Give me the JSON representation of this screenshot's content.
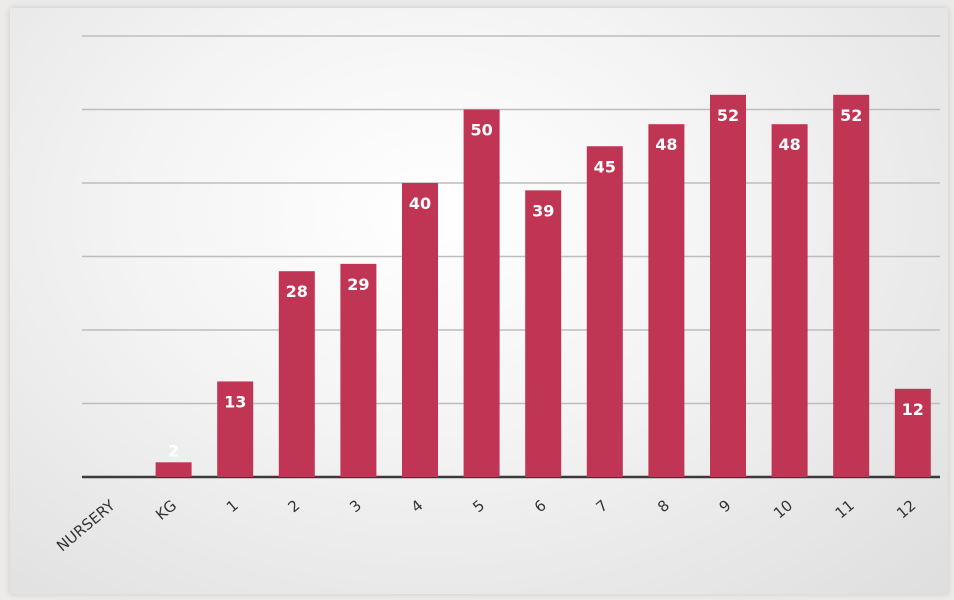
{
  "chart_data": {
    "type": "bar",
    "categories": [
      "NURSERY",
      "KG",
      "1",
      "2",
      "3",
      "4",
      "5",
      "6",
      "7",
      "8",
      "9",
      "10",
      "11",
      "12"
    ],
    "values": [
      0,
      2,
      13,
      28,
      29,
      40,
      50,
      39,
      45,
      48,
      52,
      48,
      52,
      12
    ],
    "data_labels": [
      "",
      "2",
      "13",
      "28",
      "29",
      "40",
      "50",
      "39",
      "45",
      "48",
      "52",
      "48",
      "52",
      "12"
    ],
    "ylim": [
      0,
      60
    ],
    "grid": true,
    "legend": "none",
    "colors": {
      "bar": "#c03554",
      "grid": "#bdbdbd",
      "baseline": "#3a3a3a"
    }
  }
}
